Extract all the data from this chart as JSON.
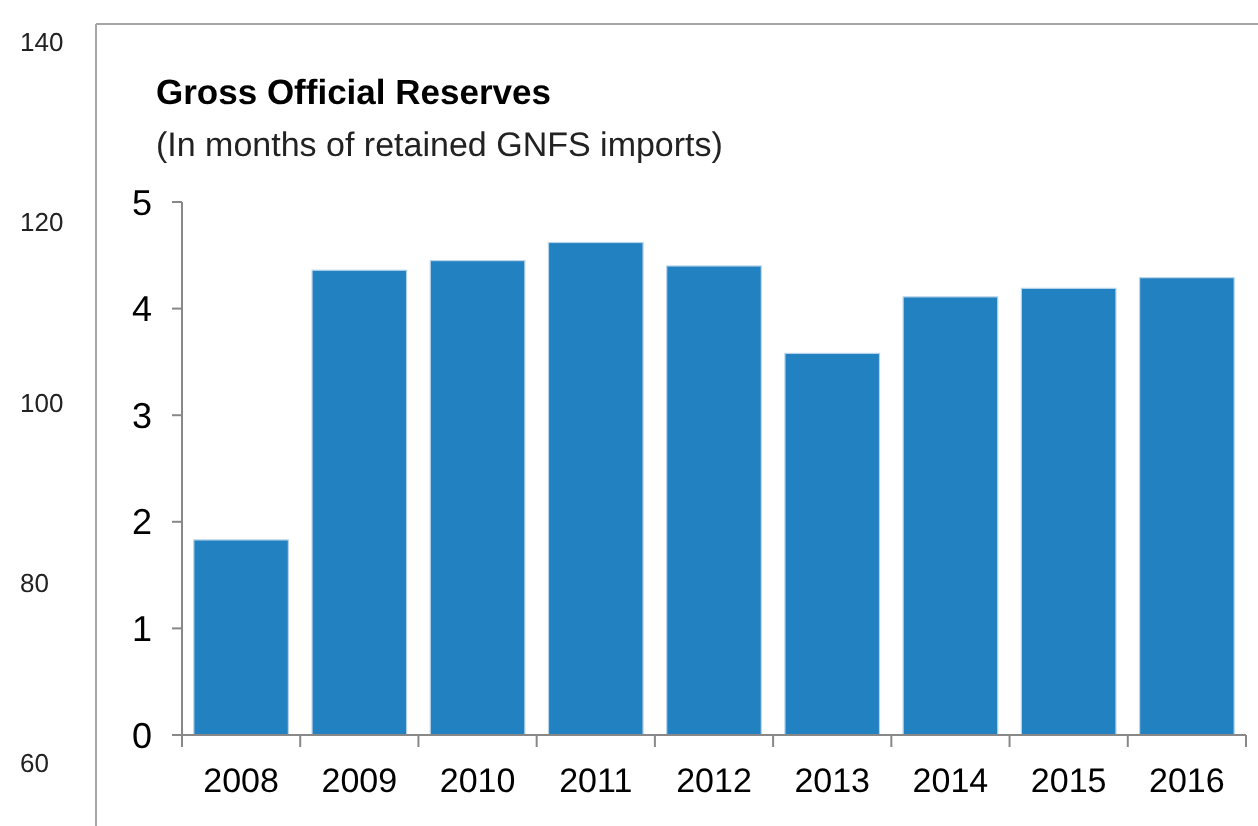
{
  "chart_data": {
    "type": "bar",
    "title": "Gross Official Reserves",
    "subtitle": "(In months of retained GNFS imports)",
    "categories": [
      "2008",
      "2009",
      "2010",
      "2011",
      "2012",
      "2013",
      "2014",
      "2015",
      "2016"
    ],
    "series": [
      {
        "color": "#2281c1",
        "values": [
          1.83,
          4.36,
          4.45,
          4.62,
          4.4,
          3.58,
          4.11,
          4.19,
          4.29
        ]
      }
    ],
    "ylim": [
      0,
      5
    ],
    "yticks": [
      0,
      1,
      2,
      3,
      4,
      5
    ],
    "y2ticks": [
      60,
      80,
      100,
      120,
      140
    ],
    "y2lim": [
      53,
      142
    ]
  }
}
